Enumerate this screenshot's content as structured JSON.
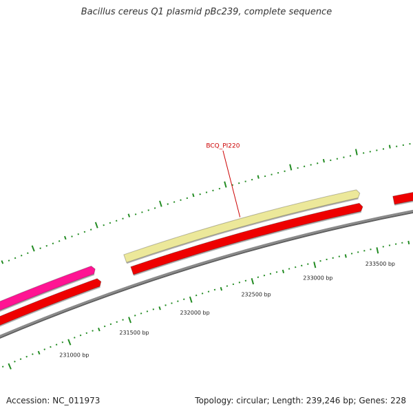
{
  "title": "Bacillus cereus Q1 plasmid pBc239, complete sequence",
  "footer": {
    "accession": "Accession: NC_011973",
    "topology": "Topology: circular; Length: 239,246 bp; Genes: 228"
  },
  "colors": {
    "backbone": "#8a8a8a",
    "gene_red": "#ee0000",
    "gene_magenta": "#ff1493",
    "gene_khaki": "#ece89a",
    "tick_green": "#228b22",
    "gene_label": "#cc0000"
  },
  "ticks": [
    {
      "bp": 231000,
      "label": "231000 bp"
    },
    {
      "bp": 231500,
      "label": "231500 bp"
    },
    {
      "bp": 232000,
      "label": "232000 bp"
    },
    {
      "bp": 232500,
      "label": "232500 bp"
    },
    {
      "bp": 233000,
      "label": "233000 bp"
    },
    {
      "bp": 233500,
      "label": "233500 bp"
    }
  ],
  "genes": [
    {
      "id": "gene-magenta-1",
      "color_key": "gene_magenta",
      "start_bp": 230500,
      "end_bp": 231380,
      "strand": "+",
      "track": 2
    },
    {
      "id": "gene-red-1",
      "color_key": "gene_red",
      "start_bp": 230500,
      "end_bp": 231390,
      "strand": "+",
      "track": 1
    },
    {
      "id": "gene-khaki-BCQ_PI220",
      "color_key": "gene_khaki",
      "start_bp": 231620,
      "end_bp": 233460,
      "strand": "+",
      "track": 2
    },
    {
      "id": "gene-red-2",
      "color_key": "gene_red",
      "start_bp": 231640,
      "end_bp": 233460,
      "strand": "+",
      "track": 1
    },
    {
      "id": "gene-red-3",
      "color_key": "gene_red",
      "start_bp": 233700,
      "end_bp": 234200,
      "strand": "+",
      "track": 1
    }
  ],
  "gene_labels": [
    {
      "text": "BCQ_PI220",
      "gene": "gene-khaki-BCQ_PI220"
    }
  ]
}
